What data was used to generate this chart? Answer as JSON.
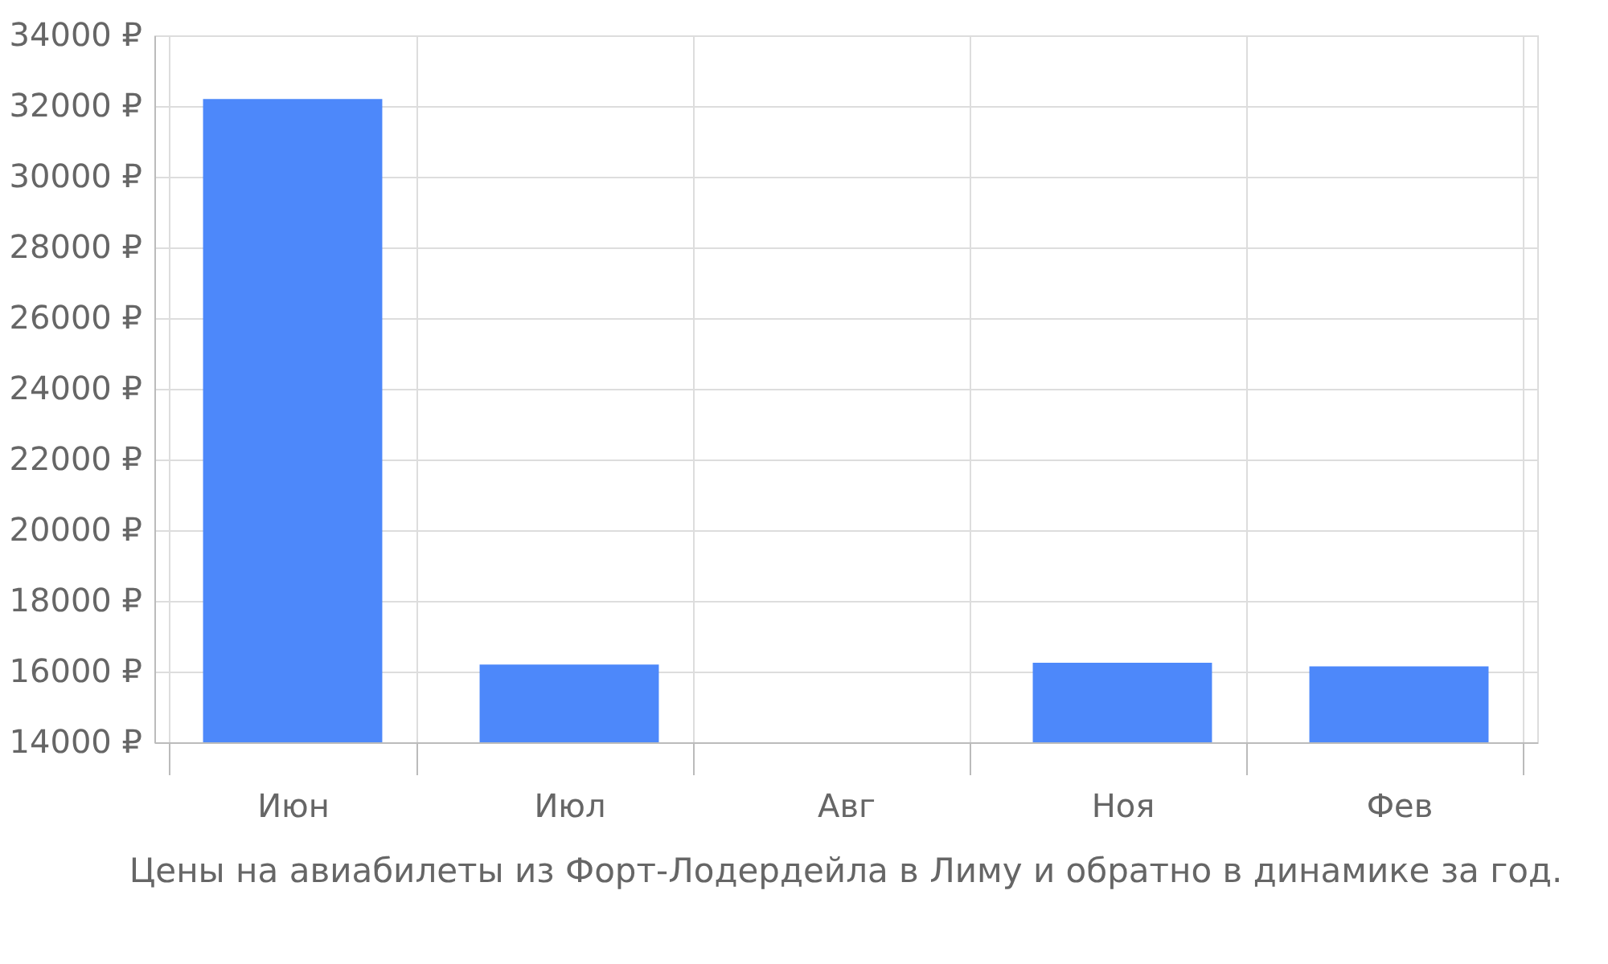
{
  "chart_data": {
    "type": "bar",
    "title": "Цены на авиабилеты из Форт-Лодердейла в Лиму и обратно в динамике за год.",
    "categories": [
      "Июн",
      "Июл",
      "Авг",
      "Ноя",
      "Фев"
    ],
    "series": [
      {
        "color": "#4d88fa",
        "values": [
          32200,
          16200,
          null,
          16250,
          16150
        ]
      }
    ],
    "ylim": [
      14000,
      34000
    ],
    "yticks": [
      {
        "value": 14000,
        "label": "14000 ₽"
      },
      {
        "value": 16000,
        "label": "16000 ₽"
      },
      {
        "value": 18000,
        "label": "18000 ₽"
      },
      {
        "value": 20000,
        "label": "20000 ₽"
      },
      {
        "value": 22000,
        "label": "22000 ₽"
      },
      {
        "value": 24000,
        "label": "24000 ₽"
      },
      {
        "value": 26000,
        "label": "26000 ₽"
      },
      {
        "value": 28000,
        "label": "28000 ₽"
      },
      {
        "value": 30000,
        "label": "30000 ₽"
      },
      {
        "value": 32000,
        "label": "32000 ₽"
      },
      {
        "value": 34000,
        "label": "34000 ₽"
      }
    ],
    "grid": true,
    "legend": false
  }
}
